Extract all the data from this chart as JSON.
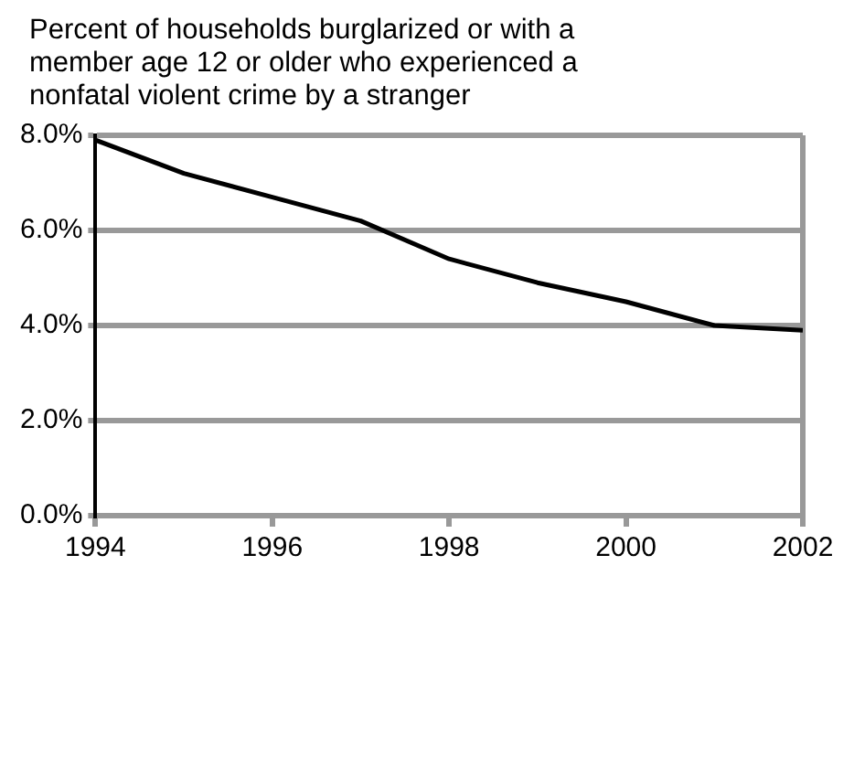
{
  "chart_data": {
    "type": "line",
    "title": "Percent of households burglarized or with a member age 12 or older who experienced a nonfatal violent crime by a stranger",
    "x": [
      1994,
      1995,
      1996,
      1997,
      1998,
      1999,
      2000,
      2001,
      2002
    ],
    "series": [
      {
        "color": "#000000",
        "values": [
          7.9,
          7.2,
          6.7,
          6.2,
          5.4,
          4.9,
          4.5,
          4.0,
          3.9
        ]
      }
    ],
    "xlim": [
      1994,
      2002
    ],
    "xticks": [
      1994,
      1996,
      1998,
      2000,
      2002
    ],
    "ylim": [
      0,
      8
    ],
    "yticks": [
      {
        "value": 0,
        "label": "0.0%"
      },
      {
        "value": 2,
        "label": "2.0%"
      },
      {
        "value": 4,
        "label": "4.0%"
      },
      {
        "value": 6,
        "label": "6.0%"
      },
      {
        "value": 8,
        "label": "8.0%"
      }
    ],
    "grid": "y",
    "legend": false,
    "marker": "none",
    "line_style": "solid"
  }
}
